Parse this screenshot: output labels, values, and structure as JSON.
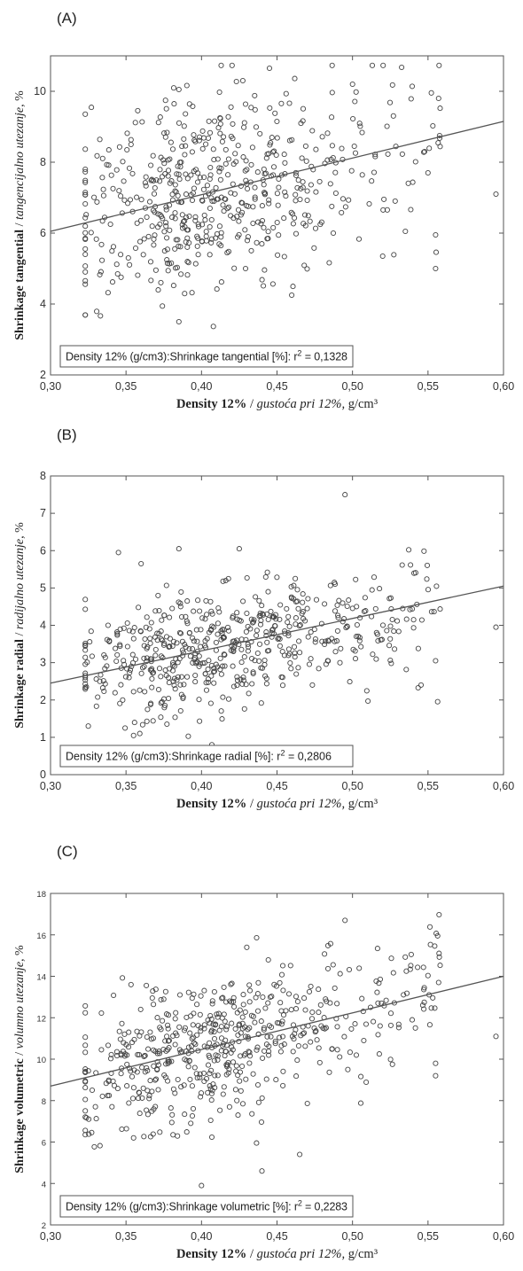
{
  "chart_data": [
    {
      "type": "scatter",
      "panel_label": "(A)",
      "xlim": [
        0.3,
        0.6
      ],
      "ylim": [
        2,
        11
      ],
      "x_ticks": [
        "0,30",
        "0,35",
        "0,40",
        "0,45",
        "0,50",
        "0,55",
        "0,60"
      ],
      "y_ticks": [
        "2",
        "4",
        "6",
        "8",
        "10"
      ],
      "y_tick_values": [
        2,
        4,
        6,
        8,
        10
      ],
      "xlabel_bold": "Density 12%",
      "xlabel_sep": " / ",
      "xlabel_italic": "gustoća pri 12%,",
      "xlabel_unit": " g/cm³",
      "ylabel_bold": "Shrinkage tangential",
      "ylabel_sep": " / ",
      "ylabel_italic": "tangencijalno utezanje,",
      "ylabel_unit": " %",
      "legend_text": "Density 12% (g/cm3):Shrinkage tangential [%]:  r",
      "legend_sup": "2",
      "legend_value": " = 0,1328",
      "fit": {
        "x": [
          0.3,
          0.6
        ],
        "y": [
          6.05,
          9.15
        ]
      },
      "series": [
        {
          "x_mean": 0.4,
          "y_mean": 7.1,
          "y_sd": 1.35,
          "slope": 10.3,
          "n": 560,
          "seed": 11,
          "outliers": [
            [
              0.595,
              7.1
            ],
            [
              0.555,
              5.0
            ],
            [
              0.555,
              5.95
            ],
            [
              0.557,
              9.8
            ],
            [
              0.445,
              10.65
            ],
            [
              0.385,
              3.5
            ],
            [
              0.385,
              10.05
            ],
            [
              0.5,
              10.2
            ],
            [
              0.52,
              5.35
            ],
            [
              0.535,
              6.05
            ],
            [
              0.55,
              7.7
            ]
          ]
        }
      ]
    },
    {
      "type": "scatter",
      "panel_label": "(B)",
      "xlim": [
        0.3,
        0.6
      ],
      "ylim": [
        0,
        8
      ],
      "x_ticks": [
        "0,30",
        "0,35",
        "0,40",
        "0,45",
        "0,50",
        "0,55",
        "0,60"
      ],
      "y_ticks": [
        "0",
        "1",
        "2",
        "3",
        "4",
        "5",
        "6",
        "7",
        "8"
      ],
      "y_tick_values": [
        0,
        1,
        2,
        3,
        4,
        5,
        6,
        7,
        8
      ],
      "xlabel_bold": "Density 12%",
      "xlabel_sep": " / ",
      "xlabel_italic": "gustoća pri 12%,",
      "xlabel_unit": " g/cm³",
      "ylabel_bold": "Shrinkage radial",
      "ylabel_sep": " / ",
      "ylabel_italic": "radijalno utezanje,",
      "ylabel_unit": " %",
      "legend_text": "Density 12% (g/cm3):Shrinkage radial [%]:  r",
      "legend_sup": "2",
      "legend_value": " = 0,2806",
      "fit": {
        "x": [
          0.3,
          0.6
        ],
        "y": [
          2.45,
          5.05
        ]
      },
      "series": [
        {
          "x_mean": 0.4,
          "y_mean": 3.3,
          "y_sd": 0.75,
          "slope": 8.6,
          "n": 560,
          "seed": 23,
          "outliers": [
            [
              0.495,
              7.5
            ],
            [
              0.345,
              5.95
            ],
            [
              0.385,
              6.05
            ],
            [
              0.425,
              6.05
            ],
            [
              0.36,
              5.65
            ],
            [
              0.595,
              3.95
            ],
            [
              0.555,
              3.05
            ],
            [
              0.355,
              1.05
            ],
            [
              0.325,
              1.3
            ]
          ]
        }
      ]
    },
    {
      "type": "scatter",
      "panel_label": "(C)",
      "xlim": [
        0.3,
        0.6
      ],
      "ylim": [
        2,
        18
      ],
      "x_ticks": [
        "0,30",
        "0,35",
        "0,40",
        "0,45",
        "0,50",
        "0,55",
        "0,60"
      ],
      "y_ticks": [
        "2",
        "4",
        "6",
        "8",
        "10",
        "12",
        "14",
        "16",
        "18"
      ],
      "y_tick_values": [
        2,
        4,
        6,
        8,
        10,
        12,
        14,
        16,
        18
      ],
      "xlabel_bold": "Density 12%",
      "xlabel_sep": " / ",
      "xlabel_italic": "gustoća pri 12%,",
      "xlabel_unit": " g/cm³",
      "ylabel_bold": "Shrinkage volumetric",
      "ylabel_sep": " / ",
      "ylabel_italic": "volumno utezanje,",
      "ylabel_unit": " %",
      "legend_text": "Density 12% (g/cm3):Shrinkage volumetric [%]:  r",
      "legend_sup": "2",
      "legend_value": " = 0,2283",
      "fit": {
        "x": [
          0.3,
          0.6
        ],
        "y": [
          8.7,
          14.0
        ]
      },
      "series": [
        {
          "x_mean": 0.4,
          "y_mean": 10.5,
          "y_sd": 1.75,
          "slope": 17.6,
          "n": 560,
          "seed": 37,
          "outliers": [
            [
              0.495,
              16.7
            ],
            [
              0.43,
              15.4
            ],
            [
              0.4,
              3.9
            ],
            [
              0.44,
              4.6
            ],
            [
              0.465,
              5.4
            ],
            [
              0.595,
              11.1
            ],
            [
              0.555,
              9.2
            ],
            [
              0.555,
              9.8
            ],
            [
              0.557,
              13.7
            ],
            [
              0.355,
              6.2
            ]
          ]
        }
      ]
    }
  ]
}
